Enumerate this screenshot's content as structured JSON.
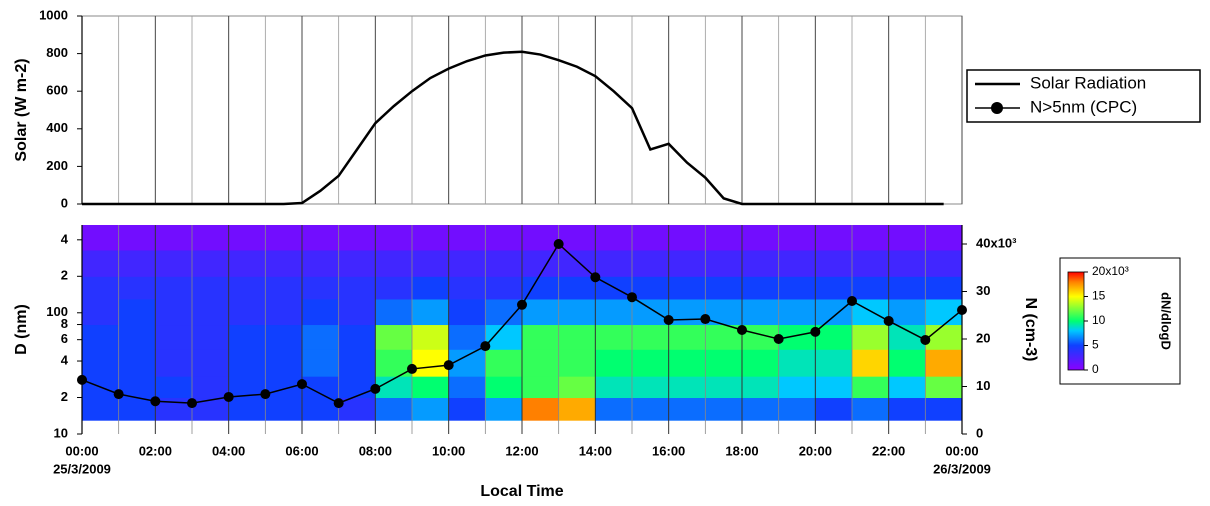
{
  "chart_data": [
    {
      "type": "line",
      "ylabel": "Solar (W m-2)",
      "x": [
        0,
        0.5,
        1,
        1.5,
        2,
        2.5,
        3,
        3.5,
        4,
        4.5,
        5,
        5.5,
        6,
        6.5,
        7,
        7.5,
        8,
        8.5,
        9,
        9.5,
        10,
        10.5,
        11,
        11.5,
        12,
        12.5,
        13,
        13.5,
        14,
        14.5,
        15,
        15.5,
        16,
        16.5,
        17,
        17.5,
        18,
        18.5,
        19,
        19.5,
        20,
        20.5,
        21,
        21.5,
        22,
        22.5,
        23,
        23.5
      ],
      "series": [
        {
          "name": "Solar Radiation",
          "color": "#000000",
          "values": [
            0,
            0,
            0,
            0,
            0,
            0,
            0,
            0,
            0,
            0,
            0,
            0,
            5,
            70,
            150,
            290,
            430,
            520,
            600,
            670,
            720,
            760,
            790,
            805,
            810,
            795,
            765,
            730,
            680,
            600,
            510,
            290,
            320,
            220,
            140,
            30,
            0,
            0,
            0,
            0,
            0,
            0,
            0,
            0,
            0,
            0,
            0,
            0
          ]
        }
      ],
      "xlim": [
        0,
        24
      ],
      "ylim": [
        0,
        1000
      ],
      "yticks": [
        0,
        200,
        400,
        600,
        800,
        1000
      ],
      "xticks": [
        0,
        2,
        4,
        6,
        8,
        10,
        12,
        14,
        16,
        18,
        20,
        22,
        24
      ],
      "x_minor_ticks": [
        1,
        3,
        5,
        7,
        9,
        11,
        13,
        15,
        17,
        19,
        21,
        23
      ]
    },
    {
      "type": "heatmap",
      "ylabel": "D (nm)",
      "y2label": "N (cm-3)",
      "xlabel": "Local Time",
      "log_y": true,
      "xlim": [
        0,
        24
      ],
      "ylim": [
        10,
        530
      ],
      "yticks": [
        10,
        {
          "value": 20,
          "label": "2"
        },
        {
          "value": 40,
          "label": "4"
        },
        {
          "value": 60,
          "label": "6"
        },
        {
          "value": 80,
          "label": "8"
        },
        100,
        {
          "value": 200,
          "label": "2"
        },
        {
          "value": 400,
          "label": "4"
        }
      ],
      "y2lim": [
        0,
        44
      ],
      "y2ticks": [
        0,
        10,
        20,
        30,
        {
          "value": 40,
          "label": "40x10³"
        }
      ],
      "xticks": [
        {
          "value": 0,
          "label": "00:00"
        },
        {
          "value": 2,
          "label": "02:00"
        },
        {
          "value": 4,
          "label": "04:00"
        },
        {
          "value": 6,
          "label": "06:00"
        },
        {
          "value": 8,
          "label": "08:00"
        },
        {
          "value": 10,
          "label": "10:00"
        },
        {
          "value": 12,
          "label": "12:00"
        },
        {
          "value": 14,
          "label": "14:00"
        },
        {
          "value": 16,
          "label": "16:00"
        },
        {
          "value": 18,
          "label": "18:00"
        },
        {
          "value": 20,
          "label": "20:00"
        },
        {
          "value": 22,
          "label": "22:00"
        },
        {
          "value": 24,
          "label": "00:00"
        }
      ],
      "x_minor_ticks": [
        1,
        3,
        5,
        7,
        9,
        11,
        13,
        15,
        17,
        19,
        21,
        23
      ],
      "date_labels": [
        "25/3/2009",
        "26/3/2009"
      ],
      "time_bins": [
        0,
        1,
        2,
        3,
        4,
        5,
        6,
        7,
        8,
        9,
        10,
        11,
        12,
        13,
        14,
        15,
        16,
        17,
        18,
        19,
        20,
        21,
        22,
        23,
        24
      ],
      "d_bins": [
        13,
        20,
        30,
        50,
        80,
        130,
        200,
        330,
        530
      ],
      "z": [
        [
          5,
          5,
          4,
          4,
          5,
          5,
          5,
          4,
          6,
          7,
          5,
          7,
          18,
          17,
          6,
          6,
          6,
          6,
          6,
          6,
          5,
          6,
          5,
          5
        ],
        [
          5,
          5,
          5,
          4,
          5,
          5,
          5,
          5,
          9,
          10,
          6,
          10,
          11,
          12,
          9,
          9,
          9,
          9,
          9,
          8,
          8,
          11,
          8,
          12
        ],
        [
          5,
          5,
          4,
          4,
          5,
          5,
          6,
          5,
          11,
          15,
          7,
          11,
          11,
          11,
          10,
          10,
          10,
          10,
          10,
          9,
          9,
          16,
          10,
          17
        ],
        [
          5,
          5,
          4,
          4,
          5,
          5,
          6,
          5,
          12,
          14,
          6,
          8,
          11,
          11,
          11,
          11,
          11,
          11,
          11,
          10,
          10,
          13,
          9,
          13
        ],
        [
          4,
          5,
          4,
          4,
          4,
          4,
          5,
          4,
          6,
          7,
          5,
          6,
          7,
          7,
          7,
          7,
          7,
          7,
          7,
          7,
          7,
          8,
          7,
          8
        ],
        [
          4,
          4,
          4,
          4,
          4,
          4,
          4,
          4,
          4,
          5,
          4,
          4,
          5,
          5,
          5,
          5,
          5,
          5,
          5,
          5,
          5,
          5,
          5,
          5
        ],
        [
          3,
          3,
          3,
          3,
          3,
          3,
          3,
          3,
          3,
          3,
          3,
          3,
          3,
          3,
          3,
          3,
          3,
          3,
          3,
          3,
          3,
          3,
          3,
          3
        ],
        [
          1,
          1,
          1,
          1,
          1,
          1,
          1,
          1,
          1,
          1,
          1,
          1,
          1,
          1,
          1,
          1,
          1,
          1,
          1,
          1,
          1,
          1,
          1,
          1
        ]
      ],
      "colorbar": {
        "label": "dN/dlogD",
        "lim": [
          0,
          20
        ],
        "ticks": [
          0,
          5,
          10,
          15,
          {
            "value": 20,
            "label": "20x10³"
          }
        ],
        "colormap": [
          [
            0,
            "#8a00ff"
          ],
          [
            5,
            "#1040ff"
          ],
          [
            8,
            "#00c8ff"
          ],
          [
            10,
            "#00ff70"
          ],
          [
            15,
            "#ffff00"
          ],
          [
            18,
            "#ff8000"
          ],
          [
            20,
            "#ff0000"
          ]
        ]
      },
      "series": [
        {
          "name": "N>5nm (CPC)",
          "color": "#000000",
          "axis": "y2",
          "x": [
            0,
            1,
            2,
            3,
            4,
            5,
            6,
            7,
            8,
            9,
            10,
            11,
            12,
            13,
            14,
            15,
            16,
            17,
            18,
            19,
            20,
            21,
            22,
            23,
            24
          ],
          "values": [
            11.4,
            8.4,
            6.9,
            6.5,
            7.8,
            8.4,
            10.5,
            6.5,
            9.5,
            13.7,
            14.5,
            18.5,
            27.2,
            40,
            33,
            28.8,
            24,
            24.2,
            21.9,
            20,
            21.5,
            28,
            23.8,
            19.8,
            26.1
          ]
        }
      ]
    }
  ]
}
